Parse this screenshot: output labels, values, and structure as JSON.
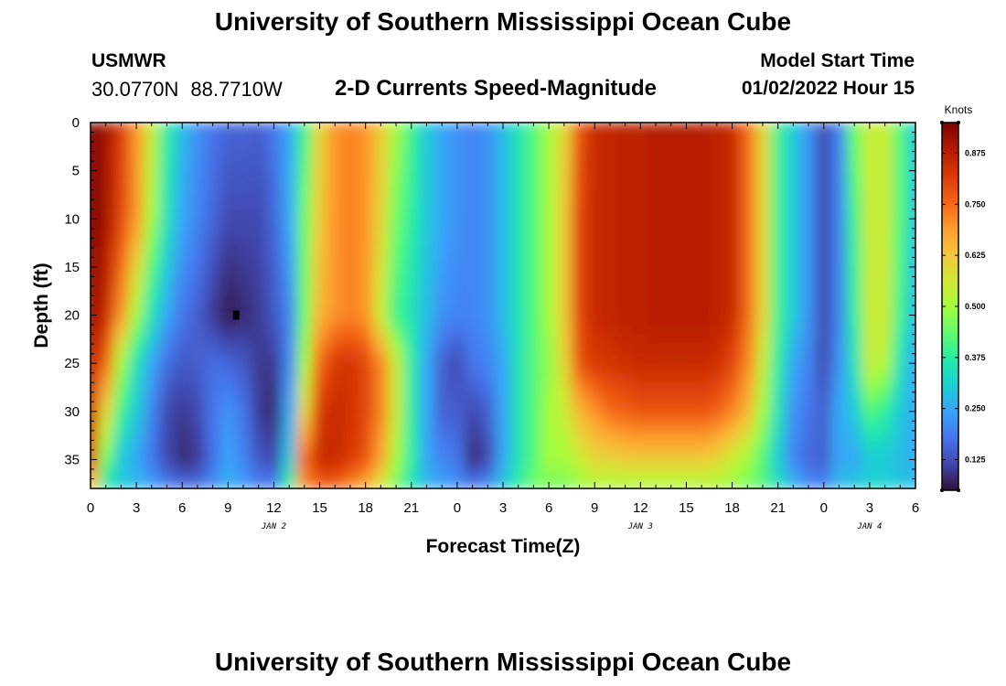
{
  "header": {
    "title": "University of Southern Mississippi Ocean Cube",
    "station": "USMWR",
    "latitude": "30.0770N",
    "longitude": "88.7710W",
    "subtitle": "2-D Currents Speed-Magnitude",
    "model_start_label": "Model Start Time",
    "model_start_value": "01/02/2022 Hour 15"
  },
  "footer": {
    "title": "University of Southern Mississippi Ocean Cube"
  },
  "colors": {
    "scale": [
      "#30123b",
      "#4145ab",
      "#4675ed",
      "#39a2fc",
      "#1bcfd4",
      "#24eca6",
      "#61fc6c",
      "#a4fc3b",
      "#d1e834",
      "#f3c63a",
      "#fe9b2d",
      "#f36315",
      "#d93806",
      "#b11901",
      "#7a0402"
    ]
  },
  "chart_data": {
    "type": "heatmap",
    "xlabel": "Forecast Time(Z)",
    "ylabel": "Depth (ft)",
    "x_ticks": [
      "0",
      "3",
      "6",
      "9",
      "12",
      "15",
      "18",
      "21",
      "0",
      "3",
      "6",
      "9",
      "12",
      "15",
      "18",
      "21",
      "0",
      "3",
      "6"
    ],
    "x_ticks_hours_from_jan2_00z": [
      0,
      3,
      6,
      9,
      12,
      15,
      18,
      21,
      24,
      27,
      30,
      33,
      36,
      39,
      42,
      45,
      48,
      51,
      54
    ],
    "xlim_hours_from_jan2_00z": [
      0,
      54
    ],
    "date_labels": [
      {
        "label": "JAN 2",
        "hour": 12
      },
      {
        "label": "JAN 3",
        "hour": 36
      },
      {
        "label": "JAN 4",
        "hour": 51
      }
    ],
    "y_ticks": [
      0,
      5,
      10,
      15,
      20,
      25,
      30,
      35
    ],
    "ylim": [
      0,
      38
    ],
    "y_inverted": true,
    "colorbar": {
      "unit": "Knots",
      "min": 0.05,
      "max": 0.95,
      "ticks": [
        0.125,
        0.25,
        0.375,
        0.5,
        0.625,
        0.75,
        0.875
      ],
      "tick_labels": [
        "0.125",
        "0.250",
        "0.375",
        "0.500",
        "0.625",
        "0.750",
        "0.875"
      ]
    },
    "grid": false,
    "profile_hours": [
      0,
      1,
      2,
      3,
      4,
      5,
      6,
      7,
      8,
      9,
      10,
      11,
      12,
      13,
      14,
      15,
      16,
      17,
      18,
      19,
      20,
      21,
      22,
      23,
      24,
      25,
      26,
      27,
      28,
      29,
      30,
      31,
      32,
      33,
      34,
      35,
      36,
      37,
      38,
      39,
      40,
      41,
      42,
      43,
      44,
      45,
      46,
      47,
      48,
      49,
      50,
      51,
      52,
      53,
      54
    ],
    "profile_depths_ft": [
      0,
      10,
      20,
      25,
      30,
      35,
      38
    ],
    "speed_knots": [
      [
        0.95,
        0.95,
        0.92,
        0.88,
        0.85,
        0.8,
        0.6
      ],
      [
        0.9,
        0.9,
        0.85,
        0.75,
        0.6,
        0.45,
        0.35
      ],
      [
        0.82,
        0.8,
        0.7,
        0.5,
        0.4,
        0.3,
        0.3
      ],
      [
        0.7,
        0.7,
        0.5,
        0.35,
        0.3,
        0.25,
        0.28
      ],
      [
        0.55,
        0.5,
        0.35,
        0.25,
        0.2,
        0.18,
        0.25
      ],
      [
        0.38,
        0.35,
        0.25,
        0.17,
        0.12,
        0.12,
        0.2
      ],
      [
        0.28,
        0.25,
        0.18,
        0.14,
        0.1,
        0.08,
        0.18
      ],
      [
        0.22,
        0.2,
        0.15,
        0.15,
        0.12,
        0.1,
        0.18
      ],
      [
        0.18,
        0.16,
        0.1,
        0.17,
        0.18,
        0.17,
        0.22
      ],
      [
        0.16,
        0.12,
        0.06,
        0.16,
        0.22,
        0.25,
        0.26
      ],
      [
        0.16,
        0.12,
        0.08,
        0.14,
        0.18,
        0.2,
        0.24
      ],
      [
        0.15,
        0.12,
        0.1,
        0.1,
        0.1,
        0.14,
        0.2
      ],
      [
        0.18,
        0.16,
        0.14,
        0.1,
        0.08,
        0.12,
        0.2
      ],
      [
        0.25,
        0.25,
        0.2,
        0.2,
        0.25,
        0.3,
        0.4
      ],
      [
        0.4,
        0.45,
        0.45,
        0.5,
        0.6,
        0.75,
        0.7
      ],
      [
        0.6,
        0.62,
        0.65,
        0.75,
        0.82,
        0.85,
        0.75
      ],
      [
        0.7,
        0.7,
        0.7,
        0.82,
        0.85,
        0.85,
        0.75
      ],
      [
        0.72,
        0.72,
        0.72,
        0.83,
        0.84,
        0.82,
        0.7
      ],
      [
        0.7,
        0.7,
        0.7,
        0.8,
        0.8,
        0.78,
        0.65
      ],
      [
        0.62,
        0.6,
        0.55,
        0.72,
        0.72,
        0.68,
        0.55
      ],
      [
        0.5,
        0.45,
        0.4,
        0.55,
        0.55,
        0.5,
        0.45
      ],
      [
        0.4,
        0.38,
        0.35,
        0.38,
        0.38,
        0.38,
        0.35
      ],
      [
        0.3,
        0.3,
        0.28,
        0.25,
        0.25,
        0.25,
        0.28
      ],
      [
        0.25,
        0.25,
        0.22,
        0.15,
        0.15,
        0.2,
        0.25
      ],
      [
        0.22,
        0.22,
        0.2,
        0.12,
        0.15,
        0.18,
        0.22
      ],
      [
        0.2,
        0.2,
        0.2,
        0.18,
        0.12,
        0.08,
        0.2
      ],
      [
        0.22,
        0.22,
        0.22,
        0.2,
        0.15,
        0.12,
        0.22
      ],
      [
        0.28,
        0.28,
        0.28,
        0.25,
        0.25,
        0.25,
        0.3
      ],
      [
        0.35,
        0.35,
        0.35,
        0.35,
        0.35,
        0.35,
        0.38
      ],
      [
        0.42,
        0.42,
        0.42,
        0.42,
        0.42,
        0.42,
        0.45
      ],
      [
        0.5,
        0.5,
        0.5,
        0.48,
        0.5,
        0.5,
        0.45
      ],
      [
        0.6,
        0.62,
        0.62,
        0.6,
        0.55,
        0.5,
        0.45
      ],
      [
        0.78,
        0.8,
        0.8,
        0.78,
        0.65,
        0.55,
        0.48
      ],
      [
        0.85,
        0.85,
        0.85,
        0.82,
        0.7,
        0.6,
        0.5
      ],
      [
        0.86,
        0.86,
        0.86,
        0.83,
        0.75,
        0.6,
        0.5
      ],
      [
        0.87,
        0.87,
        0.87,
        0.84,
        0.76,
        0.62,
        0.5
      ],
      [
        0.87,
        0.87,
        0.87,
        0.85,
        0.78,
        0.62,
        0.5
      ],
      [
        0.88,
        0.88,
        0.88,
        0.85,
        0.78,
        0.62,
        0.5
      ],
      [
        0.88,
        0.88,
        0.88,
        0.85,
        0.78,
        0.62,
        0.5
      ],
      [
        0.88,
        0.88,
        0.88,
        0.85,
        0.78,
        0.62,
        0.5
      ],
      [
        0.88,
        0.88,
        0.88,
        0.85,
        0.78,
        0.62,
        0.5
      ],
      [
        0.87,
        0.87,
        0.87,
        0.84,
        0.76,
        0.6,
        0.5
      ],
      [
        0.85,
        0.85,
        0.85,
        0.8,
        0.72,
        0.55,
        0.48
      ],
      [
        0.75,
        0.75,
        0.75,
        0.72,
        0.65,
        0.5,
        0.45
      ],
      [
        0.6,
        0.6,
        0.6,
        0.55,
        0.5,
        0.42,
        0.42
      ],
      [
        0.4,
        0.4,
        0.4,
        0.38,
        0.35,
        0.3,
        0.35
      ],
      [
        0.3,
        0.3,
        0.3,
        0.25,
        0.22,
        0.2,
        0.28
      ],
      [
        0.22,
        0.22,
        0.22,
        0.2,
        0.18,
        0.16,
        0.22
      ],
      [
        0.12,
        0.12,
        0.12,
        0.12,
        0.15,
        0.15,
        0.2
      ],
      [
        0.2,
        0.2,
        0.2,
        0.22,
        0.25,
        0.25,
        0.28
      ],
      [
        0.45,
        0.4,
        0.38,
        0.35,
        0.3,
        0.25,
        0.3
      ],
      [
        0.55,
        0.55,
        0.55,
        0.55,
        0.42,
        0.3,
        0.32
      ],
      [
        0.55,
        0.55,
        0.55,
        0.52,
        0.38,
        0.3,
        0.32
      ],
      [
        0.42,
        0.42,
        0.4,
        0.35,
        0.3,
        0.28,
        0.3
      ],
      [
        0.3,
        0.3,
        0.28,
        0.25,
        0.25,
        0.25,
        0.28
      ]
    ],
    "marker": {
      "hour": 9.5,
      "depth_ft": 20
    }
  }
}
